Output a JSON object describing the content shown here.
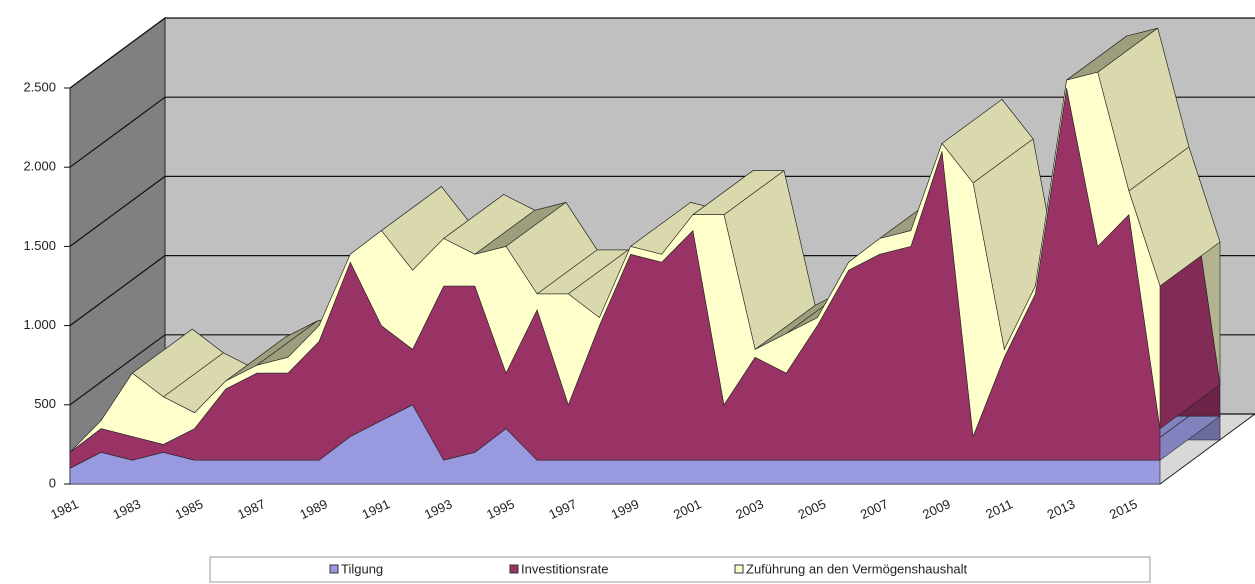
{
  "chart_data": {
    "type": "area",
    "stacked": true,
    "grid": true,
    "legend": "bottom",
    "categories": [
      "1981",
      null,
      "1983",
      null,
      "1985",
      null,
      "1987",
      null,
      "1989",
      null,
      "1991",
      null,
      "1993",
      null,
      "1995",
      null,
      "1997",
      null,
      "1999",
      null,
      "2001",
      null,
      "2003",
      null,
      "2005",
      null,
      "2007",
      null,
      "2009",
      null,
      "2011",
      null,
      "2013",
      null,
      "2015",
      null
    ],
    "ylim": [
      0,
      2500
    ],
    "yticks": [
      0,
      500,
      {
        "value": 1000,
        "label": "1.000"
      },
      {
        "value": 1500,
        "label": "1.500"
      },
      {
        "value": 2000,
        "label": "2.000"
      },
      {
        "value": 2500,
        "label": "2.500"
      }
    ],
    "series": [
      {
        "name": "Tilgung",
        "color": "#9999e0",
        "values": [
          100,
          200,
          150,
          200,
          150,
          150,
          150,
          150,
          150,
          300,
          400,
          500,
          150,
          200,
          350,
          150,
          150,
          150,
          150,
          150,
          150,
          150,
          150,
          150,
          150,
          150,
          150,
          150,
          150,
          150,
          150,
          150,
          150,
          150,
          150,
          150
        ]
      },
      {
        "name": "Investitionsrate",
        "color": "#993366",
        "values": [
          100,
          150,
          150,
          50,
          200,
          450,
          550,
          550,
          750,
          1100,
          600,
          350,
          1100,
          1050,
          350,
          950,
          350,
          850,
          1300,
          1250,
          1450,
          350,
          650,
          550,
          850,
          1200,
          1300,
          1350,
          1950,
          150,
          650,
          1050,
          2350,
          1350,
          1550,
          200
        ]
      },
      {
        "name": "Zuführung an den Vermögenshaushalt",
        "color": "#ffffcc",
        "values": [
          0,
          50,
          400,
          300,
          100,
          50,
          50,
          100,
          100,
          50,
          600,
          500,
          300,
          200,
          800,
          100,
          700,
          50,
          50,
          50,
          100,
          1200,
          50,
          250,
          50,
          50,
          100,
          100,
          50,
          1600,
          50,
          50,
          50,
          1100,
          150,
          900
        ]
      }
    ]
  }
}
